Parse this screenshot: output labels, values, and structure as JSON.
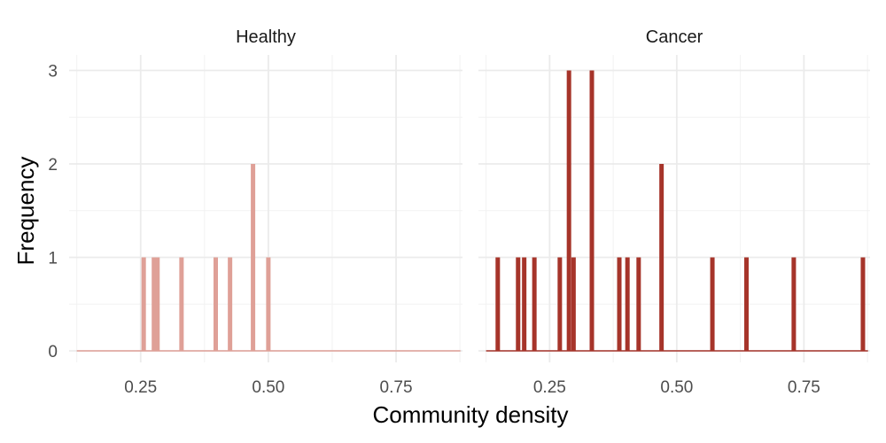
{
  "chart_data": {
    "type": "bar",
    "xlabel": "Community density",
    "ylabel": "Frequency",
    "xlim": [
      0.11,
      0.88
    ],
    "ylim": [
      0,
      3
    ],
    "x_ticks": [
      "0.25",
      "0.50",
      "0.75"
    ],
    "x_tick_values": [
      0.25,
      0.5,
      0.75
    ],
    "y_ticks": [
      "0",
      "1",
      "2",
      "3"
    ],
    "y_tick_values": [
      0,
      1,
      2,
      3
    ],
    "grid": true,
    "facets": [
      {
        "name": "Healthy",
        "color": "#dfa097",
        "bars": [
          {
            "x": 0.256,
            "count": 1
          },
          {
            "x": 0.276,
            "count": 1
          },
          {
            "x": 0.283,
            "count": 1
          },
          {
            "x": 0.33,
            "count": 1
          },
          {
            "x": 0.397,
            "count": 1
          },
          {
            "x": 0.425,
            "count": 1
          },
          {
            "x": 0.47,
            "count": 2
          },
          {
            "x": 0.5,
            "count": 1
          }
        ]
      },
      {
        "name": "Cancer",
        "color": "#a6342a",
        "bars": [
          {
            "x": 0.148,
            "count": 1
          },
          {
            "x": 0.188,
            "count": 1
          },
          {
            "x": 0.2,
            "count": 1
          },
          {
            "x": 0.22,
            "count": 1
          },
          {
            "x": 0.27,
            "count": 1
          },
          {
            "x": 0.288,
            "count": 3
          },
          {
            "x": 0.297,
            "count": 1
          },
          {
            "x": 0.333,
            "count": 3
          },
          {
            "x": 0.387,
            "count": 1
          },
          {
            "x": 0.403,
            "count": 1
          },
          {
            "x": 0.425,
            "count": 1
          },
          {
            "x": 0.47,
            "count": 2
          },
          {
            "x": 0.57,
            "count": 1
          },
          {
            "x": 0.637,
            "count": 1
          },
          {
            "x": 0.73,
            "count": 1
          },
          {
            "x": 0.866,
            "count": 1
          }
        ]
      }
    ]
  }
}
